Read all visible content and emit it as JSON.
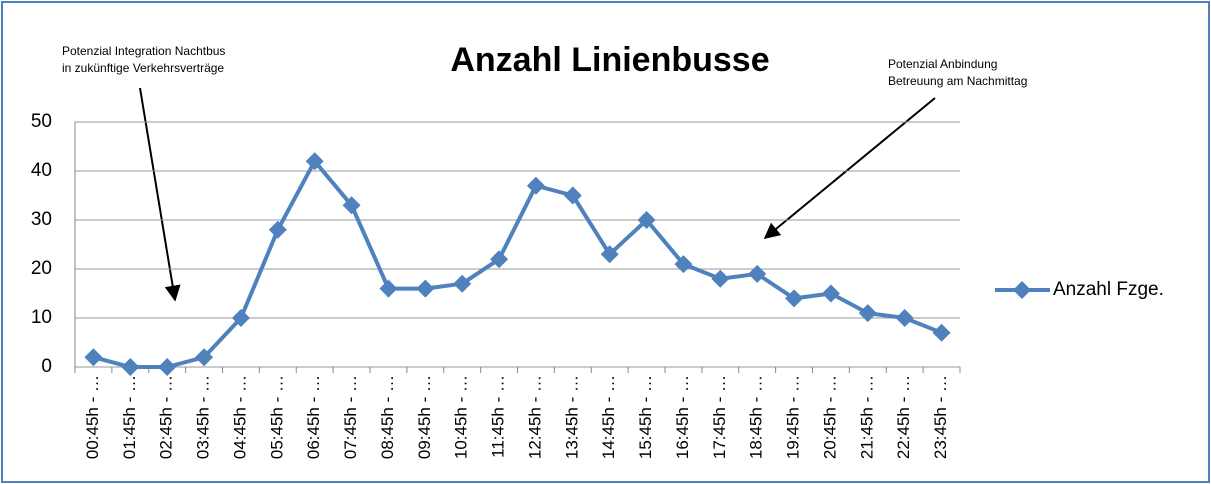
{
  "chart_data": {
    "type": "line",
    "title": "Anzahl Linienbusse",
    "annotations": [
      [
        "Potenzial Integration Nachtbus",
        "in zukünftige Verkehrsverträge"
      ],
      [
        "Potenzial Anbindung",
        "Betreuung am Nachmittag"
      ]
    ],
    "categories": [
      "00:45h - …",
      "01:45h - …",
      "02:45h - …",
      "03:45h - …",
      "04:45h - …",
      "05:45h - …",
      "06:45h - …",
      "07:45h - …",
      "08:45h - …",
      "09:45h - …",
      "10:45h - …",
      "11:45h - …",
      "12:45h - …",
      "13:45h - …",
      "14:45h - …",
      "15:45h - …",
      "16:45h - …",
      "17:45h - …",
      "18:45h - …",
      "19:45h - …",
      "20:45h - …",
      "21:45h - …",
      "22:45h - …",
      "23:45h - …"
    ],
    "series": [
      {
        "name": "Anzahl Fzge.",
        "color": "#4f81bd",
        "values": [
          2,
          0,
          0,
          2,
          10,
          28,
          42,
          33,
          16,
          16,
          17,
          22,
          37,
          35,
          23,
          30,
          21,
          18,
          19,
          14,
          15,
          11,
          10,
          7
        ]
      }
    ],
    "ylim": [
      0,
      50
    ],
    "yticks": [
      0,
      10,
      20,
      30,
      40,
      50
    ],
    "grid": true,
    "legend": "right"
  }
}
